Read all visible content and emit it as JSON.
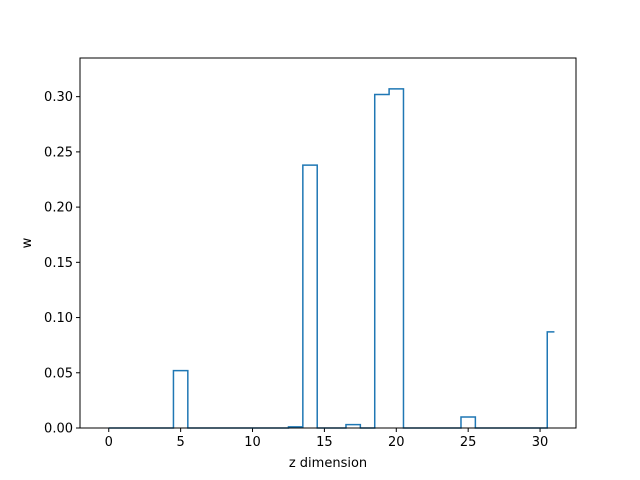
{
  "chart_data": {
    "type": "line",
    "drawstyle": "steps-mid",
    "title": "",
    "xlabel": "z dimension",
    "ylabel": "w",
    "xlim": [
      -2,
      32.5
    ],
    "ylim": [
      0,
      0.335
    ],
    "xticks": [
      0,
      5,
      10,
      15,
      20,
      25,
      30
    ],
    "yticks": [
      "0.00",
      "0.05",
      "0.10",
      "0.15",
      "0.20",
      "0.25",
      "0.30"
    ],
    "grid": false,
    "legend": "none",
    "color": "#1f77b4",
    "series": [
      {
        "x": [
          0,
          1,
          2,
          3,
          4,
          5,
          6,
          7,
          8,
          9,
          10,
          11,
          12,
          13,
          14,
          15,
          16,
          17,
          18,
          19,
          20,
          21,
          22,
          23,
          24,
          25,
          26,
          27,
          28,
          29,
          30,
          31
        ],
        "values": [
          0,
          0,
          0,
          0,
          0,
          0.052,
          0,
          0,
          0,
          0,
          0,
          0,
          0,
          0.001,
          0.238,
          0,
          0,
          0.003,
          0,
          0.302,
          0.307,
          0,
          0,
          0,
          0,
          0.01,
          0,
          0,
          0,
          0,
          0,
          0.087
        ]
      }
    ]
  }
}
